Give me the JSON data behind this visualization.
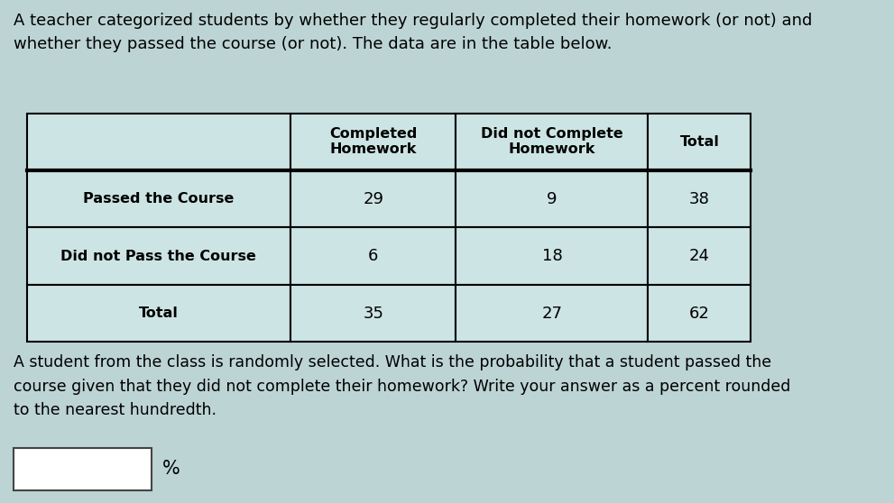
{
  "intro_text": "A teacher categorized students by whether they regularly completed their homework (or not) and\nwhether they passed the course (or not). The data are in the table below.",
  "question_text": "A student from the class is randomly selected. What is the probability that a student passed the\ncourse given that they did not complete their homework? Write your answer as a percent rounded\nto the nearest hundredth.",
  "col_headers": [
    "Completed\nHomework",
    "Did not Complete\nHomework",
    "Total"
  ],
  "row_headers": [
    "Passed the Course",
    "Did not Pass the Course",
    "Total"
  ],
  "data": [
    [
      29,
      9,
      38
    ],
    [
      6,
      18,
      24
    ],
    [
      35,
      27,
      62
    ]
  ],
  "table_cell_bg": "#cde4e4",
  "table_border_color": "#000000",
  "text_color": "#000000",
  "answer_box_color": "#ffffff",
  "page_bg": "#bdd4d4"
}
